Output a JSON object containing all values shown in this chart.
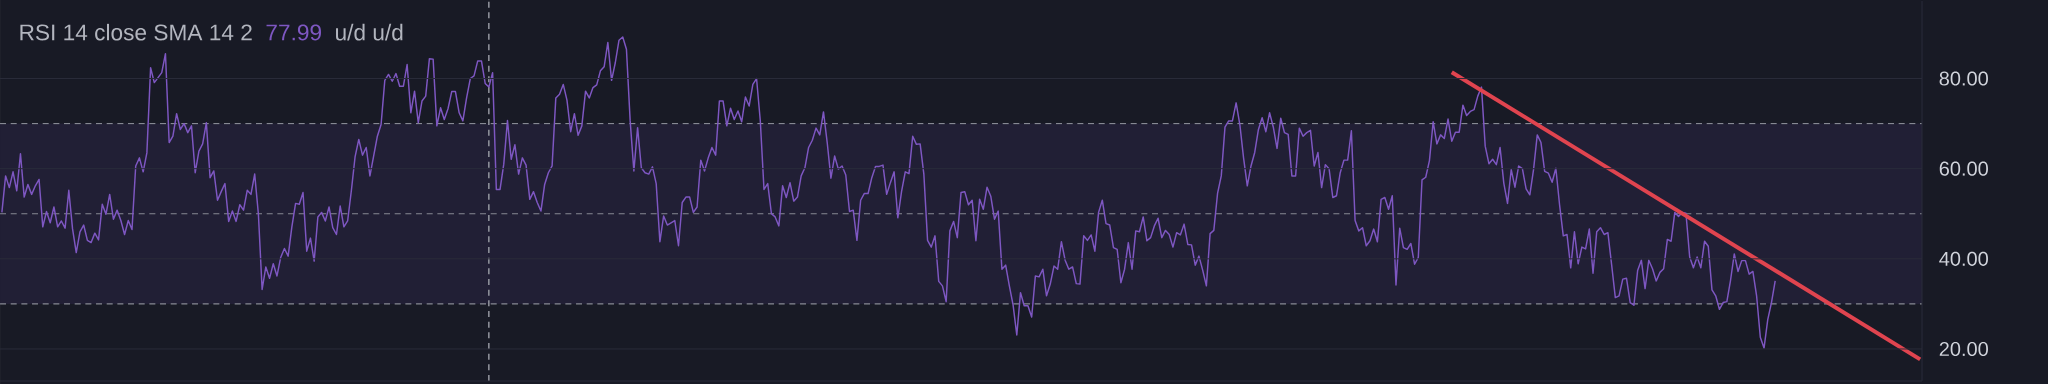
{
  "chart_data": {
    "type": "line",
    "title": "RSI 14 close SMA 14 2",
    "annotations": [
      "77.99",
      "u/d u/d"
    ],
    "categories": [
      null,
      null,
      null,
      null,
      null,
      null,
      null,
      null,
      null,
      null,
      null,
      null,
      null,
      null,
      null,
      null,
      null,
      null,
      null,
      null,
      null,
      null,
      null,
      null,
      null,
      null,
      null,
      null,
      null,
      null,
      null,
      null,
      null,
      null,
      null,
      null,
      null,
      null,
      null,
      null,
      null,
      null,
      null,
      null,
      null,
      null,
      null,
      null,
      null,
      null,
      null,
      null,
      null,
      null,
      null,
      null,
      null,
      null,
      null,
      null,
      null,
      null,
      null,
      null,
      null,
      null,
      null,
      null,
      null,
      null,
      null,
      null,
      null,
      null,
      null,
      null,
      null,
      null,
      null,
      null,
      null,
      null,
      null,
      null,
      null,
      null,
      null,
      null,
      null,
      null,
      null,
      null,
      null,
      null,
      null,
      null,
      null,
      null,
      null,
      null,
      null,
      null,
      null,
      null,
      null,
      null,
      null,
      null,
      null,
      null,
      null,
      null,
      null,
      null,
      null,
      null,
      null,
      null,
      null,
      null,
      null,
      null,
      null,
      null,
      null,
      null,
      null,
      null,
      null,
      null,
      null,
      null,
      null,
      null,
      null,
      null,
      null,
      null,
      null,
      null,
      null,
      null,
      null,
      null,
      null,
      null,
      null,
      null,
      null,
      null,
      null,
      null,
      null,
      null,
      null,
      null,
      null,
      null,
      null,
      null,
      null,
      null,
      null,
      null,
      null,
      null,
      null,
      null,
      null,
      null,
      null,
      null,
      null,
      null,
      null,
      null,
      null,
      null,
      null,
      null,
      null,
      null,
      null,
      null,
      null,
      null,
      null,
      null,
      null,
      null,
      null,
      null,
      null,
      null,
      null,
      null,
      null,
      null,
      null,
      null,
      null,
      null,
      null,
      null,
      null,
      null,
      null,
      null,
      null,
      null,
      null,
      null,
      null,
      null,
      null,
      null,
      null,
      null,
      null,
      null,
      null,
      null,
      null,
      null,
      null,
      null,
      null,
      null,
      null,
      null,
      null,
      null,
      null,
      null,
      null,
      null,
      null,
      null,
      null,
      null,
      null,
      null,
      null,
      null,
      null,
      null,
      null,
      null,
      null,
      null,
      null,
      null,
      null,
      null,
      null,
      null,
      null,
      null,
      null,
      null,
      null,
      null,
      null,
      null,
      null,
      null,
      null,
      null,
      null,
      null,
      null,
      null,
      null,
      null,
      null,
      null,
      null,
      null,
      null,
      null,
      null,
      null,
      null,
      null,
      null,
      null,
      null,
      null,
      null,
      null,
      null,
      null,
      null,
      null,
      null,
      null,
      null,
      null,
      null,
      null,
      null,
      null,
      null,
      null,
      null,
      null,
      null,
      null,
      null,
      null,
      null,
      null,
      null,
      null,
      null,
      null,
      null,
      null,
      null,
      null,
      null,
      null,
      null,
      null,
      null,
      null,
      null,
      null,
      null,
      null,
      null,
      null,
      null,
      null,
      null,
      null,
      null,
      null,
      null,
      null,
      null,
      null,
      null,
      null,
      null,
      null,
      null,
      null,
      null,
      null,
      null,
      null,
      null,
      null,
      null,
      null,
      null,
      null,
      null,
      null,
      null,
      null,
      null,
      null,
      null,
      null,
      null,
      null,
      null,
      null,
      null,
      null,
      null,
      null,
      null,
      null,
      null,
      null,
      null,
      null,
      null,
      null,
      null,
      null,
      null,
      null,
      null,
      null,
      null,
      null,
      null,
      null,
      null,
      null,
      null,
      null,
      null,
      null,
      null,
      null,
      null,
      null,
      null,
      null,
      null,
      null,
      null,
      null,
      null,
      null,
      null,
      null,
      null,
      null,
      null,
      null,
      null,
      null,
      null,
      null,
      null,
      null,
      null,
      null,
      null,
      null,
      null,
      null,
      null,
      null,
      null,
      null,
      null,
      null,
      null,
      null,
      null,
      null,
      null,
      null,
      null,
      null,
      null,
      null,
      null,
      null,
      null,
      null,
      null,
      null,
      null,
      null,
      null,
      null,
      null,
      null,
      null,
      null,
      null,
      null,
      null,
      null,
      null,
      null,
      null,
      null,
      null,
      null,
      null,
      null,
      null,
      null,
      null,
      null,
      null,
      null,
      null,
      null,
      null,
      null,
      null,
      null,
      null,
      null,
      null,
      null,
      null,
      null,
      null,
      null,
      null,
      null,
      null,
      null,
      null,
      null,
      null,
      null,
      null,
      null,
      null,
      null,
      null,
      null,
      null,
      null,
      null,
      null,
      null,
      null,
      null,
      null,
      null,
      null,
      null,
      null,
      null
    ],
    "ylim": [
      12.9,
      97.2
    ],
    "yticks": [
      {
        "value": 20,
        "label": "20.00"
      },
      {
        "value": 40,
        "label": "40.00"
      },
      {
        "value": 60,
        "label": "60.00"
      },
      {
        "value": 80,
        "label": "80.00"
      }
    ],
    "tick_labels": "y",
    "grid": "y",
    "bands": [
      {
        "axis": "y",
        "from": 30,
        "to": 70,
        "color": "#211f35"
      }
    ],
    "ref_lines": [
      {
        "axis": "y",
        "value": 70,
        "color": "#868993",
        "line_style": "dashed"
      },
      {
        "axis": "y",
        "value": 50,
        "color": "#868993",
        "line_style": "dashed"
      },
      {
        "axis": "y",
        "value": 30,
        "color": "#868993",
        "line_style": "dashed"
      }
    ],
    "series": [
      {
        "color": "#7e57c2",
        "values": [
          50.3,
          58.4,
          55.8,
          59.3,
          55.1,
          63.3,
          53.7,
          56.5,
          54.3,
          56.2,
          57.6,
          47.1,
          50.5,
          48.0,
          51.5,
          47.1,
          48.4,
          46.8,
          55.2,
          46.7,
          41.4,
          46.0,
          47.5,
          44.1,
          43.6,
          45.7,
          44.2,
          52.1,
          49.9,
          54.3,
          48.8,
          50.8,
          48.5,
          45.4,
          48.5,
          46.5,
          60.6,
          62.4,
          59.3,
          63.5,
          82.4,
          79.1,
          80.2,
          81.3,
          85.5,
          65.8,
          67.2,
          72.2,
          68.7,
          70.0,
          68.0,
          69.5,
          59.1,
          63.9,
          65.5,
          70.2,
          58.0,
          59.5,
          53.0,
          54.9,
          56.7,
          48.3,
          50.6,
          48.3,
          52.0,
          50.8,
          55.2,
          54.3,
          58.8,
          49.9,
          33.2,
          38.2,
          35.7,
          38.9,
          36.2,
          40.3,
          42.3,
          40.6,
          47.1,
          52.3,
          52.1,
          54.7,
          41.7,
          44.6,
          39.5,
          49.3,
          50.3,
          48.4,
          51.5,
          46.9,
          45.4,
          51.7,
          47.1,
          48.4,
          55.1,
          62.6,
          66.5,
          63.0,
          64.7,
          58.4,
          62.8,
          67.2,
          69.8,
          79.6,
          80.9,
          79.4,
          81.1,
          78.3,
          78.3,
          83.1,
          72.4,
          77.2,
          70.2,
          75.0,
          76.1,
          84.4,
          84.3,
          69.5,
          73.5,
          70.9,
          73.3,
          77.1,
          77.1,
          72.4,
          70.6,
          75.7,
          80.0,
          80.6,
          83.9,
          83.9,
          78.9,
          78.1,
          81.3,
          55.4,
          55.4,
          61.0,
          70.7,
          62.1,
          65.3,
          58.8,
          62.4,
          60.8,
          53.2,
          54.9,
          52.5,
          50.6,
          56.5,
          59.1,
          60.6,
          75.7,
          76.5,
          78.7,
          75.2,
          68.2,
          72.2,
          67.4,
          69.5,
          77.2,
          75.7,
          78.0,
          78.6,
          81.7,
          82.6,
          88.0,
          79.6,
          83.5,
          88.5,
          89.2,
          86.5,
          70.6,
          59.5,
          69.1,
          60.2,
          59.1,
          58.8,
          60.4,
          56.7,
          43.8,
          49.5,
          47.5,
          48.0,
          48.5,
          42.9,
          52.5,
          53.7,
          53.7,
          50.3,
          51.5,
          61.9,
          59.5,
          62.4,
          64.7,
          63.0,
          75.0,
          75.0,
          69.5,
          73.4,
          70.9,
          72.8,
          70.4,
          75.9,
          73.9,
          78.7,
          80.0,
          70.7,
          55.4,
          56.7,
          50.0,
          49.3,
          47.3,
          56.2,
          53.6,
          56.9,
          52.8,
          53.7,
          58.4,
          60.2,
          64.7,
          66.3,
          69.0,
          67.5,
          72.6,
          65.8,
          57.9,
          62.8,
          59.9,
          60.6,
          58.6,
          50.5,
          50.8,
          44.1,
          53.0,
          54.5,
          54.5,
          58.0,
          60.5,
          60.5,
          60.8,
          54.3,
          56.9,
          59.3,
          49.1,
          54.9,
          59.3,
          58.9,
          67.2,
          65.4,
          65.5,
          58.8,
          44.1,
          42.6,
          45.1,
          35.0,
          34.0,
          30.5,
          46.2,
          48.3,
          44.7,
          54.7,
          54.9,
          52.0,
          53.0,
          44.0,
          53.2,
          51.0,
          55.9,
          53.9,
          48.8,
          50.6,
          37.7,
          38.6,
          34.0,
          29.8,
          23.1,
          32.5,
          29.6,
          29.6,
          27.1,
          36.2,
          36.0,
          37.7,
          31.8,
          34.4,
          38.4,
          37.7,
          43.8,
          39.7,
          37.7,
          38.2,
          34.5,
          34.4,
          45.1,
          44.1,
          45.3,
          41.7,
          50.3,
          53.0,
          47.8,
          47.5,
          42.5,
          42.1,
          34.7,
          37.7,
          43.6,
          37.7,
          46.2,
          46.0,
          49.3,
          44.0,
          44.7,
          47.3,
          49.0,
          44.7,
          46.3,
          45.4,
          42.6,
          45.8,
          45.3,
          47.7,
          43.2,
          43.1,
          38.6,
          40.6,
          37.5,
          34.0,
          45.6,
          46.3,
          54.5,
          58.4,
          69.2,
          70.6,
          70.6,
          74.6,
          69.8,
          62.4,
          56.2,
          60.6,
          63.6,
          68.7,
          71.3,
          68.2,
          72.4,
          69.2,
          64.5,
          71.2,
          68.0,
          67.6,
          58.4,
          58.4,
          69.0,
          67.2,
          68.0,
          68.5,
          60.6,
          63.6,
          55.8,
          60.9,
          60.0,
          53.6,
          54.0,
          59.1,
          61.9,
          61.9,
          68.4,
          48.5,
          46.2,
          46.9,
          42.9,
          44.0,
          46.6,
          43.8,
          53.2,
          53.6,
          51.0,
          54.0,
          34.2,
          46.8,
          42.5,
          42.1,
          43.4,
          38.8,
          40.3,
          57.5,
          58.1,
          61.8,
          70.4,
          65.5,
          67.5,
          66.7,
          71.0,
          66.1,
          68.1,
          68.1,
          74.1,
          71.8,
          72.7,
          73.1,
          76.1,
          78.1,
          65.0,
          61.1,
          62.1,
          60.9,
          64.7,
          56.8,
          52.3,
          59.8,
          55.9,
          60.6,
          60.0,
          55.5,
          54.2,
          59.8,
          67.5,
          65.8,
          59.4,
          59.0,
          57.0,
          60.1,
          52.0,
          45.1,
          45.4,
          38.0,
          46.0,
          38.9,
          42.6,
          42.2,
          46.6,
          36.8,
          46.0,
          46.9,
          45.4,
          45.8,
          38.7,
          31.4,
          31.8,
          35.5,
          35.7,
          30.3,
          29.7,
          37.4,
          39.7,
          33.4,
          39.7,
          37.8,
          35.1,
          37.0,
          37.8,
          44.3,
          43.9,
          50.3,
          49.4,
          50.3,
          50.1,
          40.4,
          38.0,
          40.4,
          38.0,
          43.9,
          42.8,
          33.1,
          31.8,
          28.8,
          30.3,
          30.5,
          35.3,
          41.1,
          37.2,
          39.6,
          39.6,
          36.6,
          37.2,
          31.8,
          22.6,
          20.2,
          26.5,
          30.3,
          35.1,
          null,
          null,
          null,
          null,
          null,
          null,
          null,
          null,
          null,
          null,
          null,
          null,
          null,
          null,
          null,
          null,
          null,
          null,
          null,
          null,
          null,
          null,
          null,
          null,
          null,
          null,
          null,
          null,
          null,
          null,
          null,
          null,
          null,
          null,
          null,
          null,
          null,
          null,
          null
        ]
      },
      {
        "color": "#e0444f",
        "values": [
          null,
          null,
          null,
          null,
          null,
          null,
          null,
          null,
          null,
          null,
          null,
          null,
          null,
          null,
          null,
          null,
          null,
          null,
          null,
          null,
          null,
          null,
          null,
          null,
          null,
          null,
          null,
          null,
          null,
          null,
          null,
          null,
          null,
          null,
          null,
          null,
          null,
          null,
          null,
          null,
          null,
          null,
          null,
          null,
          null,
          null,
          null,
          null,
          null,
          null,
          null,
          null,
          null,
          null,
          null,
          null,
          null,
          null,
          null,
          null,
          null,
          null,
          null,
          null,
          null,
          null,
          null,
          null,
          null,
          null,
          null,
          null,
          null,
          null,
          null,
          null,
          null,
          null,
          null,
          null,
          null,
          null,
          null,
          null,
          null,
          null,
          null,
          null,
          null,
          null,
          null,
          null,
          null,
          null,
          null,
          null,
          null,
          null,
          null,
          null,
          null,
          null,
          null,
          null,
          null,
          null,
          null,
          null,
          null,
          null,
          null,
          null,
          null,
          null,
          null,
          null,
          null,
          null,
          null,
          null,
          null,
          null,
          null,
          null,
          null,
          null,
          null,
          null,
          null,
          null,
          null,
          null,
          null,
          null,
          null,
          null,
          null,
          null,
          null,
          null,
          null,
          null,
          null,
          null,
          null,
          null,
          null,
          null,
          null,
          null,
          null,
          null,
          null,
          null,
          null,
          null,
          null,
          null,
          null,
          null,
          null,
          null,
          null,
          null,
          null,
          null,
          null,
          null,
          null,
          null,
          null,
          null,
          null,
          null,
          null,
          null,
          null,
          null,
          null,
          null,
          null,
          null,
          null,
          null,
          null,
          null,
          null,
          null,
          null,
          null,
          null,
          null,
          null,
          null,
          null,
          null,
          null,
          null,
          null,
          null,
          null,
          null,
          null,
          null,
          null,
          null,
          null,
          null,
          null,
          null,
          null,
          null,
          null,
          null,
          null,
          null,
          null,
          null,
          null,
          null,
          null,
          null,
          null,
          null,
          null,
          null,
          null,
          null,
          null,
          null,
          null,
          null,
          null,
          null,
          null,
          null,
          null,
          null,
          null,
          null,
          null,
          null,
          null,
          null,
          null,
          null,
          null,
          null,
          null,
          null,
          null,
          null,
          null,
          null,
          null,
          null,
          null,
          null,
          null,
          null,
          null,
          null,
          null,
          null,
          null,
          null,
          null,
          null,
          null,
          null,
          null,
          null,
          null,
          null,
          null,
          null,
          null,
          null,
          null,
          null,
          null,
          null,
          null,
          null,
          null,
          null,
          null,
          null,
          null,
          null,
          null,
          null,
          null,
          null,
          null,
          null,
          null,
          null,
          null,
          null,
          null,
          null,
          null,
          null,
          null,
          null,
          null,
          null,
          null,
          null,
          null,
          null,
          null,
          null,
          null,
          null,
          null,
          null,
          null,
          null,
          null,
          null,
          null,
          null,
          null,
          null,
          null,
          null,
          null,
          null,
          null,
          null,
          null,
          null,
          null,
          null,
          null,
          null,
          null,
          null,
          null,
          null,
          null,
          null,
          null,
          null,
          null,
          null,
          null,
          null,
          null,
          null,
          null,
          null,
          null,
          null,
          null,
          null,
          null,
          null,
          null,
          null,
          null,
          null,
          null,
          null,
          null,
          null,
          null,
          null,
          null,
          null,
          null,
          null,
          null,
          null,
          null,
          null,
          null,
          null,
          null,
          null,
          null,
          null,
          null,
          null,
          null,
          null,
          null,
          null,
          81.4,
          null,
          null,
          null,
          null,
          null,
          null,
          null,
          null,
          null,
          null,
          null,
          null,
          null,
          null,
          null,
          null,
          null,
          null,
          null,
          null,
          null,
          null,
          null,
          null,
          null,
          null,
          null,
          null,
          null,
          null,
          null,
          null,
          null,
          null,
          null,
          null,
          null,
          null,
          null,
          null,
          null,
          null,
          null,
          null,
          null,
          null,
          null,
          null,
          null,
          null,
          null,
          null,
          null,
          null,
          null,
          null,
          null,
          null,
          null,
          null,
          null,
          null,
          null,
          null,
          null,
          null,
          null,
          null,
          null,
          null,
          null,
          null,
          null,
          null,
          null,
          null,
          null,
          null,
          null,
          null,
          null,
          null,
          null,
          null,
          null,
          null,
          null,
          null,
          null,
          null,
          null,
          null,
          null,
          null,
          null,
          null,
          null,
          null,
          null,
          null,
          null,
          null,
          null,
          null,
          null,
          null,
          null,
          null,
          null,
          null,
          null,
          null,
          null,
          null,
          null,
          null,
          null,
          null,
          null,
          null,
          null,
          null,
          null,
          null,
          null,
          17.7
        ]
      }
    ]
  }
}
